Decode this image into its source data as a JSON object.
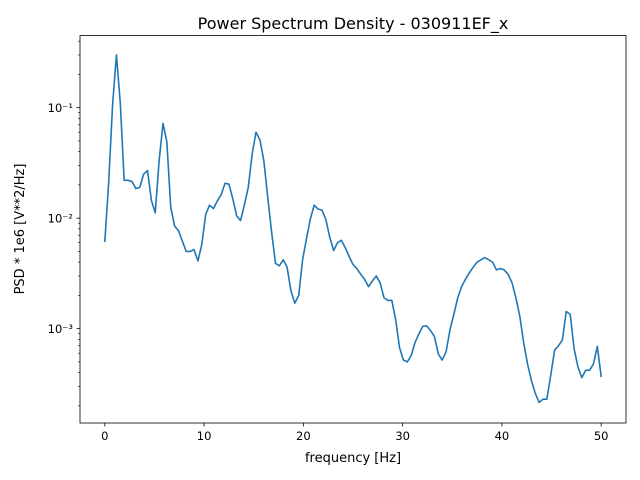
{
  "chart_data": {
    "type": "line",
    "title": "Power Spectrum Density - 030911EF_x",
    "xlabel": "frequency [Hz]",
    "ylabel": "PSD * 1e6 [V**2/Hz]",
    "yscale": "log",
    "xlim": [
      -2.5,
      52.5
    ],
    "ylim": [
      0.00014,
      0.45
    ],
    "x_ticks": [
      0,
      10,
      20,
      30,
      40,
      50
    ],
    "x_tick_labels": [
      "0",
      "10",
      "20",
      "30",
      "40",
      "50"
    ],
    "y_ticks": [
      0.001,
      0.01,
      0.1
    ],
    "y_tick_labels": [
      "10⁻³",
      "10⁻²",
      "10⁻¹"
    ],
    "grid": false,
    "line_color": "#1f77b4",
    "series": [
      {
        "x": [
          0,
          0.39,
          0.78,
          1.17,
          1.56,
          1.95,
          2.34,
          2.73,
          3.13,
          3.52,
          3.91,
          4.3,
          4.69,
          5.08,
          5.47,
          5.86,
          6.25,
          6.64,
          7.03,
          7.42,
          7.81,
          8.2,
          8.59,
          8.98,
          9.38,
          9.77,
          10.16,
          10.55,
          10.94,
          11.33,
          11.72,
          12.11,
          12.5,
          12.89,
          13.28,
          13.67,
          14.06,
          14.45,
          14.84,
          15.23,
          15.63,
          16.02,
          16.41,
          16.8,
          17.19,
          17.58,
          17.97,
          18.36,
          18.75,
          19.14,
          19.53,
          19.92,
          20.31,
          20.7,
          21.09,
          21.48,
          21.88,
          22.27,
          22.66,
          23.05,
          23.44,
          23.83,
          24.22,
          24.61,
          25.0,
          25.39,
          25.78,
          26.17,
          26.56,
          26.95,
          27.34,
          27.73,
          28.13,
          28.52,
          28.91,
          29.3,
          29.69,
          30.08,
          30.47,
          30.86,
          31.25,
          31.64,
          32.03,
          32.42,
          32.81,
          33.2,
          33.59,
          33.98,
          34.38,
          34.77,
          35.16,
          35.55,
          35.94,
          36.33,
          36.72,
          37.11,
          37.5,
          37.89,
          38.28,
          38.67,
          39.06,
          39.45,
          39.84,
          40.23,
          40.63,
          41.02,
          41.41,
          41.8,
          42.19,
          42.58,
          42.97,
          43.36,
          43.75,
          44.14,
          44.53,
          44.92,
          45.31,
          45.7,
          46.09,
          46.48,
          46.88,
          47.27,
          47.66,
          48.05,
          48.44,
          48.83,
          49.22,
          49.61,
          50.0
        ],
        "y": [
          0.0062,
          0.021,
          0.105,
          0.3,
          0.11,
          0.022,
          0.022,
          0.0215,
          0.0185,
          0.019,
          0.025,
          0.027,
          0.0145,
          0.0112,
          0.033,
          0.072,
          0.049,
          0.0125,
          0.0085,
          0.0077,
          0.0062,
          0.005,
          0.005,
          0.0052,
          0.0041,
          0.0058,
          0.0108,
          0.0131,
          0.0122,
          0.0143,
          0.0163,
          0.0207,
          0.0203,
          0.015,
          0.0105,
          0.0095,
          0.0132,
          0.019,
          0.038,
          0.06,
          0.051,
          0.033,
          0.0155,
          0.0075,
          0.0039,
          0.0037,
          0.0042,
          0.0036,
          0.0022,
          0.0017,
          0.002,
          0.0042,
          0.0065,
          0.0098,
          0.0131,
          0.0121,
          0.0118,
          0.0097,
          0.0067,
          0.0051,
          0.006,
          0.0063,
          0.0054,
          0.0045,
          0.0038,
          0.0035,
          0.0031,
          0.0028,
          0.0024,
          0.0027,
          0.003,
          0.0026,
          0.0019,
          0.0018,
          0.0018,
          0.0012,
          0.00067,
          0.00052,
          0.0005,
          0.00057,
          0.00075,
          0.0009,
          0.00105,
          0.00106,
          0.00096,
          0.00085,
          0.00059,
          0.00052,
          0.00062,
          0.00098,
          0.00135,
          0.0019,
          0.0024,
          0.0028,
          0.0032,
          0.0036,
          0.004,
          0.0042,
          0.0044,
          0.0042,
          0.004,
          0.0034,
          0.0035,
          0.0034,
          0.0031,
          0.0026,
          0.0019,
          0.0013,
          0.00075,
          0.00048,
          0.00034,
          0.00026,
          0.000215,
          0.00023,
          0.00023,
          0.00038,
          0.00064,
          0.0007,
          0.00079,
          0.00143,
          0.00135,
          0.00066,
          0.00045,
          0.00036,
          0.00042,
          0.00042,
          0.00048,
          0.00069,
          0.00037
        ]
      }
    ]
  }
}
